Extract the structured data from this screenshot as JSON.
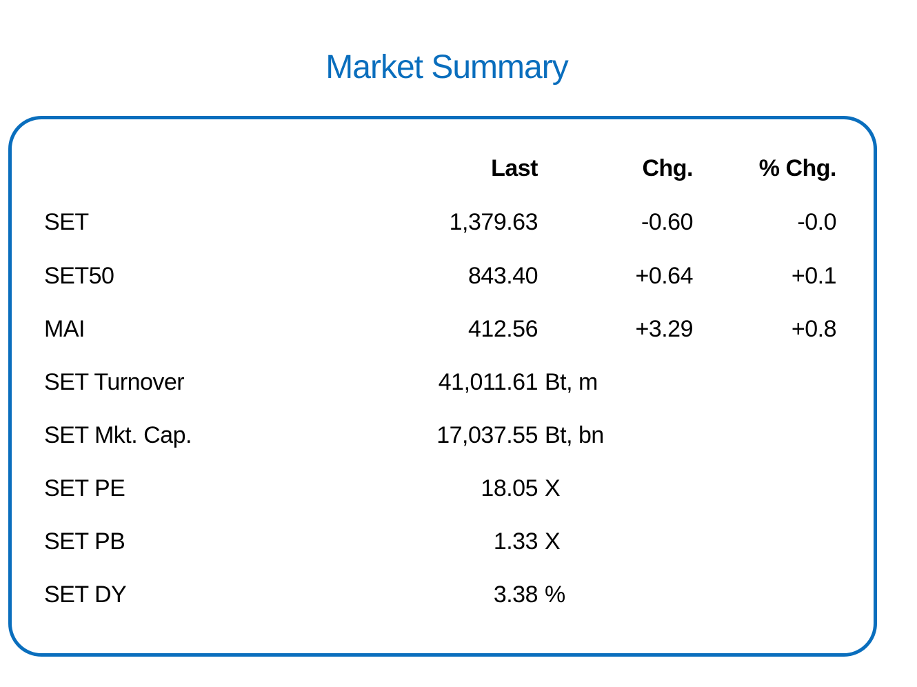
{
  "title": "Market Summary",
  "theme": {
    "accent": "#0a6ebd",
    "text": "#000000"
  },
  "headers": {
    "last": "Last",
    "chg": "Chg.",
    "pct": "% Chg."
  },
  "indices": [
    {
      "name": "SET",
      "last": "1,379.63",
      "chg": "-0.60",
      "pct": "-0.0"
    },
    {
      "name": "SET50",
      "last": "843.40",
      "chg": "+0.64",
      "pct": "+0.1"
    },
    {
      "name": "MAI",
      "last": "412.56",
      "chg": "+3.29",
      "pct": "+0.8"
    }
  ],
  "stats": [
    {
      "name": "SET Turnover",
      "value": "41,011.61",
      "unit": "Bt, m"
    },
    {
      "name": "SET Mkt. Cap.",
      "value": "17,037.55",
      "unit": "Bt, bn"
    },
    {
      "name": "SET PE",
      "value": "18.05",
      "unit": "X"
    },
    {
      "name": "SET PB",
      "value": "1.33",
      "unit": "X"
    },
    {
      "name": "SET DY",
      "value": "3.38",
      "unit": "%"
    }
  ]
}
